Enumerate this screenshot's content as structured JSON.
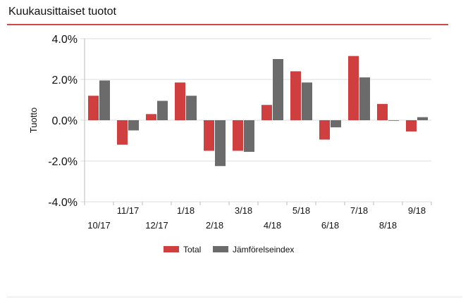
{
  "header": {
    "title": "Kuukausittaiset tuotot"
  },
  "colors": {
    "accent": "#c94a46",
    "total": "#d03f3f",
    "index": "#6b6b6b",
    "grid": "#dddddd"
  },
  "chart_data": {
    "type": "bar",
    "title": "",
    "xlabel": "",
    "ylabel": "Tuotto",
    "ylim": [
      -4.0,
      4.0
    ],
    "yticks": [
      "4.0%",
      "2.0%",
      "0.0%",
      "-2.0%",
      "-4.0%"
    ],
    "ytick_values": [
      4.0,
      2.0,
      0.0,
      -2.0,
      -4.0
    ],
    "grid": true,
    "legend": "bottom",
    "categories": [
      "10/17",
      "11/17",
      "12/17",
      "1/18",
      "2/18",
      "3/18",
      "4/18",
      "5/18",
      "6/18",
      "7/18",
      "8/18",
      "9/18"
    ],
    "series": [
      {
        "name": "Total",
        "color": "#d03f3f",
        "values": [
          1.2,
          -1.2,
          0.3,
          1.85,
          -1.5,
          -1.5,
          0.75,
          2.4,
          -0.95,
          3.15,
          0.8,
          -0.55
        ]
      },
      {
        "name": "Jämförelseindex",
        "color": "#6b6b6b",
        "values": [
          1.95,
          -0.5,
          0.95,
          1.2,
          -2.25,
          -1.55,
          3.0,
          1.85,
          -0.35,
          2.1,
          0.0,
          0.15
        ]
      }
    ]
  }
}
